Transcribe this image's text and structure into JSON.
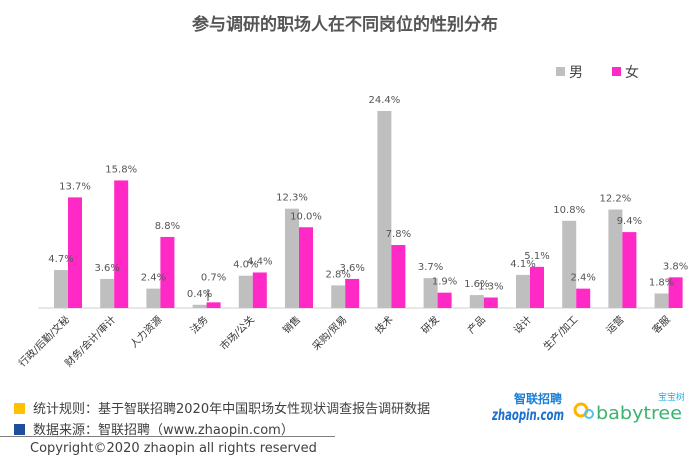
{
  "chart_data": {
    "type": "bar",
    "title": "参与调研的职场人在不同岗位的性别分布",
    "categories": [
      "行政/后勤/文秘",
      "财务/会计/审计",
      "人力资源",
      "法务",
      "市场/公关",
      "销售",
      "采购/贸易",
      "技术",
      "研发",
      "产品",
      "设计",
      "生产/加工",
      "运营",
      "客服"
    ],
    "series": [
      {
        "name": "男",
        "color": "#bfbfbf",
        "values": [
          4.7,
          3.6,
          2.4,
          0.4,
          4.0,
          12.3,
          2.8,
          24.4,
          3.7,
          1.6,
          4.1,
          10.8,
          12.2,
          1.8
        ]
      },
      {
        "name": "女",
        "color": "#ff29c6",
        "values": [
          13.7,
          15.8,
          8.8,
          0.7,
          4.4,
          10.0,
          3.6,
          7.8,
          1.9,
          1.3,
          5.1,
          2.4,
          9.4,
          3.8
        ]
      }
    ],
    "value_labels": {
      "男": [
        "4.7%",
        "3.6%",
        "2.4%",
        "0.4%",
        "4.0%",
        "12.3%",
        "2.8%",
        "24.4%",
        "3.7%",
        "1.6%",
        "4.1%",
        "10.8%",
        "12.2%",
        "1.8%"
      ],
      "女": [
        "13.7%",
        "15.8%",
        "8.8%",
        "0.7%",
        "4.4%",
        "10.0%",
        "3.6%",
        "7.8%",
        "1.9%",
        "1.3%",
        "5.1%",
        "2.4%",
        "9.4%",
        "3.8%"
      ]
    },
    "ylim": [
      0,
      25
    ],
    "grid": false,
    "legend_position": "top-right",
    "xlabel": "",
    "ylabel": ""
  },
  "footer": {
    "rule": "统计规则：基于智联招聘2020年中国职场女性现状调查报告调研数据",
    "source": "数据来源：智联招聘（www.zhaopin.com）",
    "copyright": "Copyright©2020 zhaopin all rights reserved",
    "rule_color": "#ffc000",
    "source_color": "#1f4e9c"
  },
  "logos": {
    "zhaopin_cn": "智联招聘",
    "zhaopin_en": "zhaopin.com",
    "babytree_cn": "宝宝树",
    "babytree_en": "babytree"
  }
}
